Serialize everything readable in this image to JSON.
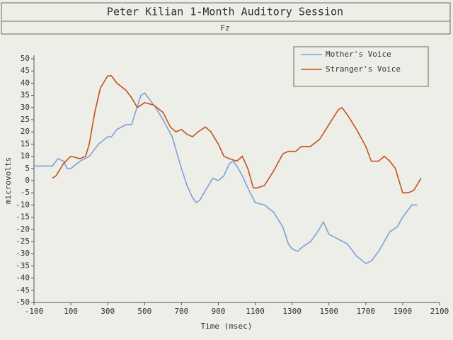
{
  "chart_data": {
    "type": "line",
    "title": "Peter Kilian 1-Month Auditory Session",
    "subtitle": "Fz",
    "x_label": "Time (msec)",
    "y_label": "microvolts",
    "xlim": [
      -100,
      2100
    ],
    "xticks": [
      -100,
      100,
      300,
      500,
      700,
      900,
      1100,
      1300,
      1500,
      1700,
      1900,
      2100
    ],
    "ylim": [
      -50,
      50
    ],
    "yticks": [
      -50,
      -45,
      -40,
      -35,
      -30,
      -25,
      -20,
      -15,
      -10,
      -5,
      0,
      5,
      10,
      15,
      20,
      25,
      30,
      35,
      40,
      45,
      50
    ],
    "grid": false,
    "legend": "upper right",
    "series": [
      {
        "name": "Mother's Voice",
        "color": "#7f9fdc",
        "x": [
          -100,
          0,
          30,
          60,
          80,
          100,
          150,
          200,
          250,
          300,
          320,
          350,
          400,
          430,
          450,
          480,
          500,
          530,
          560,
          600,
          650,
          680,
          700,
          730,
          760,
          780,
          800,
          830,
          870,
          900,
          930,
          960,
          980,
          1000,
          1030,
          1060,
          1100,
          1150,
          1200,
          1250,
          1280,
          1300,
          1330,
          1360,
          1400,
          1430,
          1470,
          1500,
          1550,
          1600,
          1650,
          1700,
          1730,
          1770,
          1800,
          1830,
          1870,
          1900,
          1950,
          1980
        ],
        "values": [
          6,
          6,
          9,
          8,
          5,
          5,
          8,
          10,
          15,
          18,
          18,
          21,
          23,
          23,
          28,
          35,
          36,
          33,
          30,
          25,
          18,
          10,
          5,
          -2,
          -7,
          -9,
          -8,
          -4,
          1,
          0,
          2,
          7,
          8,
          6,
          2,
          -3,
          -9,
          -10,
          -13,
          -19,
          -26,
          -28,
          -29,
          -27,
          -25,
          -22,
          -17,
          -22,
          -24,
          -26,
          -31,
          -34,
          -33,
          -29,
          -25,
          -21,
          -19,
          -15,
          -10,
          -10
        ]
      },
      {
        "name": "Stranger's Voice",
        "color": "#c8501e",
        "x": [
          0,
          20,
          60,
          100,
          150,
          180,
          200,
          230,
          260,
          300,
          320,
          350,
          400,
          430,
          460,
          480,
          500,
          550,
          600,
          640,
          670,
          700,
          730,
          760,
          790,
          830,
          860,
          900,
          930,
          960,
          1000,
          1030,
          1060,
          1090,
          1110,
          1150,
          1200,
          1250,
          1280,
          1320,
          1350,
          1400,
          1450,
          1500,
          1550,
          1570,
          1600,
          1650,
          1700,
          1730,
          1770,
          1800,
          1830,
          1860,
          1880,
          1900,
          1930,
          1960,
          2000
        ],
        "values": [
          1,
          2,
          7,
          10,
          9,
          10,
          15,
          28,
          38,
          43,
          43,
          40,
          37,
          34,
          30,
          31,
          32,
          31,
          28,
          22,
          20,
          21,
          19,
          18,
          20,
          22,
          20,
          15,
          10,
          9,
          8,
          10,
          5,
          -3,
          -3,
          -2,
          4,
          11,
          12,
          12,
          14,
          14,
          17,
          23,
          29,
          30,
          27,
          21,
          14,
          8,
          8,
          10,
          8,
          5,
          0,
          -5,
          -5,
          -4,
          1
        ]
      }
    ]
  }
}
